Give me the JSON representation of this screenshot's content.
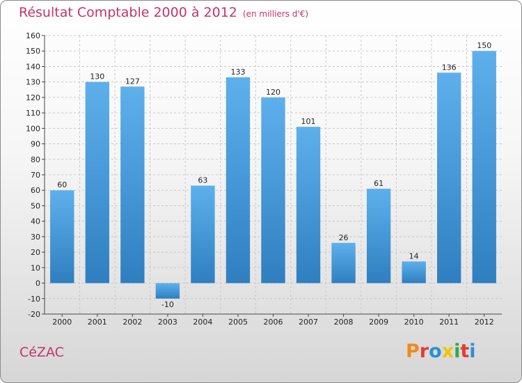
{
  "header": {
    "title": "Résultat Comptable 2000 à 2012",
    "subtitle": "(en milliers d'€)"
  },
  "footer": {
    "commune": "CéZAC",
    "logo": "Proxiti",
    "logo_letters": [
      {
        "char": "P",
        "color": "#f08a1c"
      },
      {
        "char": "r",
        "color": "#e63a2e"
      },
      {
        "char": "o",
        "color": "#2a8fd6"
      },
      {
        "char": "x",
        "color": "#f2c400"
      },
      {
        "char": "i",
        "color": "#2fa94a"
      },
      {
        "char": "t",
        "color": "#e63a2e"
      },
      {
        "char": "i",
        "color": "#2a8fd6"
      }
    ]
  },
  "colors": {
    "bar_light": "#5eb0ec",
    "bar_dark": "#2f7fc0",
    "grid": "#c8c8c8",
    "accent": "#c4336a"
  },
  "chart_data": {
    "type": "bar",
    "title": "Résultat Comptable 2000 à 2012",
    "subtitle": "(en milliers d'€)",
    "xlabel": "",
    "ylabel": "",
    "categories": [
      "2000",
      "2001",
      "2002",
      "2003",
      "2004",
      "2005",
      "2006",
      "2007",
      "2008",
      "2009",
      "2010",
      "2011",
      "2012"
    ],
    "values": [
      60,
      130,
      127,
      -10,
      63,
      133,
      120,
      101,
      26,
      61,
      14,
      136,
      150
    ],
    "value_labels": [
      "60",
      "130",
      "127",
      "-10",
      "63",
      "133",
      "120",
      "101",
      "26",
      "61",
      "14",
      "136",
      "150"
    ],
    "ylim": [
      -20,
      160
    ],
    "yticks": [
      -20,
      -10,
      0,
      10,
      20,
      30,
      40,
      50,
      60,
      70,
      80,
      90,
      100,
      110,
      120,
      130,
      140,
      150,
      160
    ],
    "ytick_labels": [
      "-20",
      "-10",
      "0",
      "10",
      "20",
      "30",
      "40",
      "50",
      "60",
      "70",
      "80",
      "90",
      "100",
      "110",
      "120",
      "130",
      "140",
      "150",
      "160"
    ],
    "grid": true,
    "legend": "none"
  }
}
